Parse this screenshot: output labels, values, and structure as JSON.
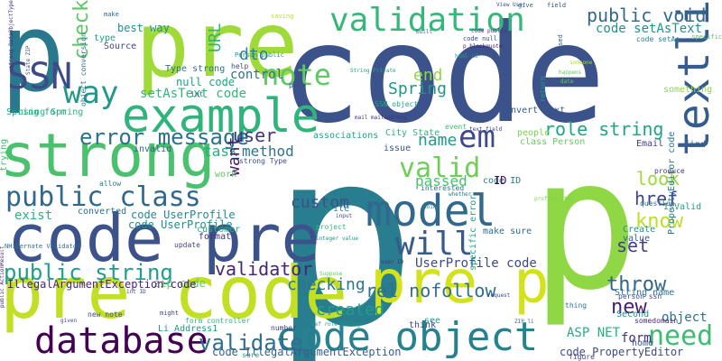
{
  "word_cloud": {
    "words": [
      {
        "text": "code",
        "color": "#3b528b"
      },
      {
        "text": "p",
        "color": "#287d8e"
      },
      {
        "text": "pre",
        "color": "#a0da39"
      },
      {
        "text": "p",
        "color": "#2a788e"
      },
      {
        "text": "pre code",
        "color": "#c2df23"
      },
      {
        "text": "code pre",
        "color": "#3b528b"
      },
      {
        "text": "strong",
        "color": "#4ac16d"
      },
      {
        "text": "p",
        "color": "#8fd744"
      },
      {
        "text": "pre p",
        "color": "#d2e21b"
      },
      {
        "text": "example",
        "color": "#2fb47c"
      },
      {
        "text": "code object",
        "color": "#26828e"
      },
      {
        "text": "validation",
        "color": "#35b779"
      },
      {
        "text": "model",
        "color": "#31688e"
      },
      {
        "text": "textli",
        "color": "#365c8d"
      },
      {
        "text": "database",
        "color": "#440154"
      },
      {
        "text": "SSN",
        "color": "#3e4989"
      },
      {
        "text": "will",
        "color": "#38598c"
      },
      {
        "text": "public class",
        "color": "#31688e"
      },
      {
        "text": "public string",
        "color": "#1f9e89"
      },
      {
        "text": "note",
        "color": "#5ec962"
      },
      {
        "text": "valid",
        "color": "#6ece58"
      },
      {
        "text": "way",
        "color": "#1f9a8a"
      },
      {
        "text": "em",
        "color": "#3e4a89"
      },
      {
        "text": "error message",
        "color": "#2c728e"
      },
      {
        "text": "validate",
        "color": "#2e6e8e"
      },
      {
        "text": "validator",
        "color": "#482475"
      },
      {
        "text": "need",
        "color": "#3fbc73"
      },
      {
        "text": "role string",
        "color": "#20a486"
      },
      {
        "text": "public void",
        "color": "#30698e"
      },
      {
        "text": "code setAsText",
        "color": "#20928c"
      },
      {
        "text": "setAsText code",
        "color": "#32b67a"
      },
      {
        "text": "know",
        "color": "#bddf26"
      },
      {
        "text": "check",
        "color": "#5cc863"
      },
      {
        "text": "user",
        "color": "#46337f"
      },
      {
        "text": "name",
        "color": "#1e9b8a"
      },
      {
        "text": "href",
        "color": "#414487"
      },
      {
        "text": "throw",
        "color": "#31678e"
      },
      {
        "text": "rel nofollow",
        "color": "#2d708e"
      },
      {
        "text": "UserProfile code",
        "color": "#3e4989"
      },
      {
        "text": "new",
        "color": "#481f70"
      },
      {
        "text": "set",
        "color": "#433e85"
      },
      {
        "text": "look",
        "color": "#9bd93c"
      },
      {
        "text": "checking",
        "color": "#2a768e"
      },
      {
        "text": "created",
        "color": "#1f9f88"
      },
      {
        "text": "custom",
        "color": "#3b528b"
      },
      {
        "text": "dto",
        "color": "#27808e"
      },
      {
        "text": "URL",
        "color": "#2fb47c"
      },
      {
        "text": "Spring",
        "color": "#1f968b"
      },
      {
        "text": "end",
        "color": "#90d743"
      },
      {
        "text": "task",
        "color": "#26ad81"
      },
      {
        "text": "method",
        "color": "#2b758e"
      },
      {
        "text": "want",
        "color": "#481b6d"
      },
      {
        "text": "control",
        "color": "#2e6f8e"
      },
      {
        "text": "form",
        "color": "#46327e"
      },
      {
        "text": "object",
        "color": "#2c728e"
      },
      {
        "text": "ASP NET",
        "color": "#27ad81"
      },
      {
        "text": "code UserProfile",
        "color": "#238a8d"
      },
      {
        "text": "zip code",
        "color": "#5ec962"
      },
      {
        "text": "code PropertyEditor",
        "color": "#3f4889"
      },
      {
        "text": "code IllegalArgumentException",
        "color": "#365d8d"
      },
      {
        "text": "IllegalArgumentException code",
        "color": "#482677"
      },
      {
        "text": "exist",
        "color": "#2db27d"
      },
      {
        "text": "passed",
        "color": "#4ac16d"
      },
      {
        "text": "null code",
        "color": "#20a386"
      },
      {
        "text": "Type strong",
        "color": "#2c718e"
      },
      {
        "text": "best way",
        "color": "#21918c"
      },
      {
        "text": "Source",
        "color": "#404688"
      },
      {
        "text": "type",
        "color": "#1fa088"
      },
      {
        "text": "PropertyEditor code",
        "color": "#2a788e"
      },
      {
        "text": "IsValid",
        "color": "#1fa188"
      },
      {
        "text": "profile html",
        "color": "#7ad151"
      },
      {
        "text": "strong DataObjectType",
        "color": "#46317e"
      },
      {
        "text": "View User",
        "color": "#3b528b"
      },
      {
        "text": "p blockquote",
        "color": "#482071"
      },
      {
        "text": "code setAs",
        "color": "#26828e"
      },
      {
        "text": "code null",
        "color": "#3d4d8a"
      },
      {
        "text": "saving",
        "color": "#b5de2b"
      },
      {
        "text": "make",
        "color": "#31688e"
      },
      {
        "text": "give",
        "color": "#2e6d8e"
      },
      {
        "text": "field",
        "color": "#3a548c"
      },
      {
        "text": "specific",
        "color": "#52c569"
      },
      {
        "text": "Li Address1",
        "color": "#1f978b"
      },
      {
        "text": "number",
        "color": "#424086"
      },
      {
        "text": "make sure",
        "color": "#2e6e8e"
      },
      {
        "text": "Create",
        "color": "#20928c"
      },
      {
        "text": "value",
        "color": "#365d8d"
      },
      {
        "text": "person ssn",
        "color": "#3e4a89"
      },
      {
        "text": "something",
        "color": "#90d743"
      },
      {
        "text": "City State",
        "color": "#2fb47c"
      },
      {
        "text": "SSN object",
        "color": "#22a785"
      },
      {
        "text": "convert text",
        "color": "#375a8c"
      },
      {
        "text": "class Person",
        "color": "#65cb5e"
      },
      {
        "text": "Email",
        "color": "#433e85"
      },
      {
        "text": "find",
        "color": "#355f8d"
      },
      {
        "text": "question",
        "color": "#2d718e"
      },
      {
        "text": "produce",
        "color": "#453882"
      },
      {
        "text": "write",
        "color": "#238a8d"
      },
      {
        "text": "input",
        "color": "#433d84"
      },
      {
        "text": "project",
        "color": "#35b779"
      },
      {
        "text": "Suppose",
        "color": "#5ec962"
      },
      {
        "text": "figure",
        "color": "#414487"
      },
      {
        "text": "sure",
        "color": "#26ad81"
      },
      {
        "text": "see",
        "color": "#1f9a8a"
      },
      {
        "text": "think",
        "color": "#3f4788"
      },
      {
        "text": "home",
        "color": "#3b528b"
      },
      {
        "text": "Second",
        "color": "#21918c"
      },
      {
        "text": "String name",
        "color": "#2c728e"
      },
      {
        "text": "somedomain",
        "color": "#472c7a"
      },
      {
        "text": "thing",
        "color": "#2a788e"
      },
      {
        "text": "request",
        "color": "#3e4989"
      },
      {
        "text": "associations",
        "color": "#20a386"
      },
      {
        "text": "event",
        "color": "#3fbc73"
      },
      {
        "text": "people",
        "color": "#7ad151"
      },
      {
        "text": "issue",
        "color": "#3a548c"
      },
      {
        "text": "interested",
        "color": "#2c738e"
      },
      {
        "text": "whether",
        "color": "#2d718e"
      },
      {
        "text": "point",
        "color": "#26828e"
      },
      {
        "text": "code ID",
        "color": "#287c8e"
      },
      {
        "text": "ID",
        "color": "#46085c"
      },
      {
        "text": "specific error",
        "color": "#20a486"
      },
      {
        "text": "mail mailaddress",
        "color": "#46327e"
      },
      {
        "text": "State ZIP",
        "color": "#3b528b"
      },
      {
        "text": "converted",
        "color": "#2d708e"
      },
      {
        "text": "code UserProfile",
        "color": "#238a8d"
      },
      {
        "text": "customer",
        "color": "#26ad81"
      },
      {
        "text": "format",
        "color": "#472d7b"
      },
      {
        "text": "update",
        "color": "#414487"
      },
      {
        "text": "invalid",
        "color": "#34618d"
      },
      {
        "text": "work",
        "color": "#5ec962"
      },
      {
        "text": "strong Type",
        "color": "#3e4a89"
      },
      {
        "text": "user ID",
        "color": "#46337f"
      },
      {
        "text": "page",
        "color": "#3b528b"
      },
      {
        "text": "help",
        "color": "#3f4788"
      },
      {
        "text": "int",
        "color": "#31688e"
      },
      {
        "text": "Person public",
        "color": "#20928c"
      },
      {
        "text": "Spring form",
        "color": "#1f9e89"
      },
      {
        "text": "object conversion",
        "color": "#2c728e"
      },
      {
        "text": "trying",
        "color": "#3fbc73"
      },
      {
        "text": "using Spring",
        "color": "#2fb47c"
      },
      {
        "text": "form controller",
        "color": "#31b57b"
      },
      {
        "text": "allow",
        "color": "#2a788e"
      },
      {
        "text": "new note",
        "color": "#3e4a89"
      },
      {
        "text": "might",
        "color": "#404688"
      },
      {
        "text": "given",
        "color": "#3f4889"
      },
      {
        "text": "public ActionResult",
        "color": "#472c7a"
      },
      {
        "text": "NHibernate Validator",
        "color": "#2d708e"
      },
      {
        "text": "int ID",
        "color": "#3e4989"
      },
      {
        "text": "def role_string",
        "color": "#1f988b"
      },
      {
        "text": "integer value",
        "color": "#20928c"
      },
      {
        "text": "String Private",
        "color": "#22a785"
      },
      {
        "text": "html id",
        "color": "#1fa088"
      },
      {
        "text": "code public",
        "color": "#46337f"
      },
      {
        "text": "built",
        "color": "#2e6e8e"
      },
      {
        "text": "text field",
        "color": "#453882"
      },
      {
        "text": "return",
        "color": "#1f9f88"
      },
      {
        "text": "used",
        "color": "#365c8d"
      },
      {
        "text": "happens",
        "color": "#5ec962"
      },
      {
        "text": "date",
        "color": "#6ece58"
      },
      {
        "text": "someone",
        "color": "#b5de2b"
      },
      {
        "text": "ZIP li",
        "color": "#31688e"
      }
    ]
  }
}
